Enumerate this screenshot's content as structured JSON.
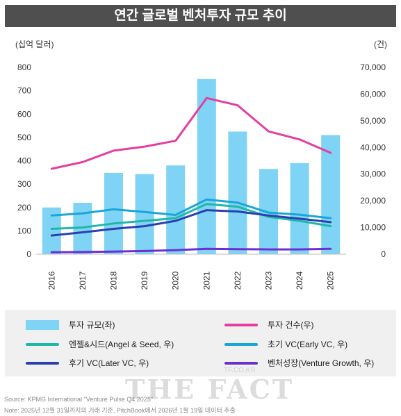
{
  "title": "연간 글로벌 벤처투자 규모 추이",
  "left_unit": "(십억 달러)",
  "right_unit": "(건)",
  "chart_data": {
    "type": "bar",
    "categories": [
      "2016",
      "2017",
      "2018",
      "2019",
      "2020",
      "2021",
      "2022",
      "2023",
      "2024",
      "2025"
    ],
    "ylim_left": [
      0,
      800
    ],
    "left_ticks": [
      "0",
      "100",
      "200",
      "300",
      "400",
      "500",
      "600",
      "700",
      "800"
    ],
    "ylim_right": [
      0,
      70000
    ],
    "right_ticks": [
      "0",
      "10,000",
      "20,000",
      "30,000",
      "40,000",
      "50,000",
      "60,000",
      "70,000"
    ],
    "bar_series": {
      "name": "투자 규모(좌)",
      "color": "#7fd3f4",
      "values": [
        200,
        220,
        348,
        343,
        380,
        750,
        525,
        365,
        390,
        510
      ]
    },
    "line_series": [
      {
        "name": "투자 건수(우)",
        "color": "#e43ea0",
        "values": [
          32000,
          34500,
          38800,
          40300,
          42500,
          58500,
          55800,
          46000,
          43000,
          38000
        ]
      },
      {
        "name": "엔젤&시드(Angel & Seed, 우)",
        "color": "#1fb8a8",
        "values": [
          9500,
          10000,
          11500,
          12500,
          13500,
          18800,
          17800,
          14000,
          12500,
          10500
        ]
      },
      {
        "name": "초기 VC(Early VC, 우)",
        "color": "#1aa6d8",
        "values": [
          14500,
          15300,
          16800,
          15800,
          14700,
          20500,
          19300,
          15600,
          14800,
          13500
        ]
      },
      {
        "name": "후기 VC(Later VC, 우)",
        "color": "#2a3fb0",
        "values": [
          7000,
          8200,
          9500,
          10500,
          12500,
          16500,
          16000,
          14500,
          13300,
          12000
        ]
      },
      {
        "name": "벤처성장(Venture Growth, 우)",
        "color": "#6b2fd1",
        "values": [
          700,
          800,
          1000,
          1200,
          1500,
          2000,
          1900,
          1800,
          1800,
          2000
        ]
      }
    ]
  },
  "legend": [
    "투자 규모(좌)",
    "투자 건수(우)",
    "엔젤&시드(Angel & Seed, 우)",
    "초기 VC(Early VC, 우)",
    "후기 VC(Later VC, 우)",
    "벤처성장(Venture Growth, 우)"
  ],
  "legend_colors": [
    "#7fd3f4",
    "#e43ea0",
    "#1fb8a8",
    "#1aa6d8",
    "#2a3fb0",
    "#6b2fd1"
  ],
  "watermark": "THE FACT",
  "watermark_small": "TF.CO.KR",
  "source": "Source: KPMG International \"Venture Pulse Q4 2025\"",
  "note": "Note: 2025년 12월 31일까지의 거래 기준, PitchBook에서 2026년 1월 19일 데이터 추출"
}
